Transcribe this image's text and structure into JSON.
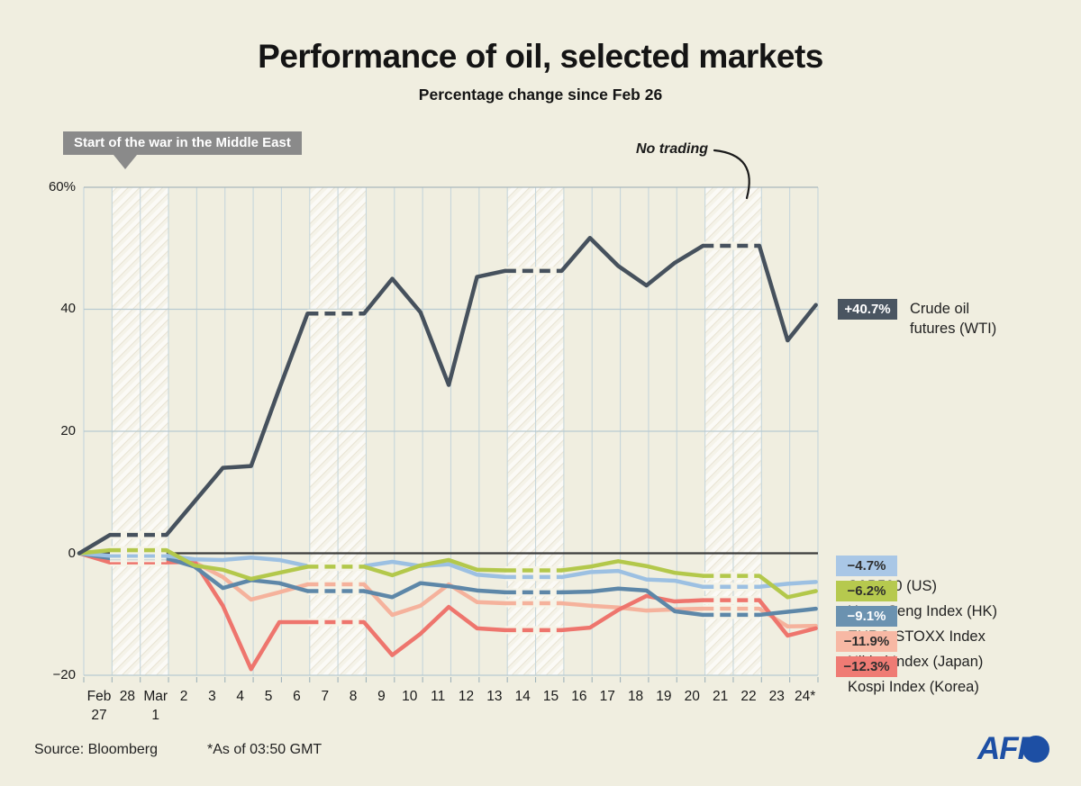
{
  "header": {
    "title": "Performance of oil, selected markets",
    "subtitle": "Percentage change since Feb 26"
  },
  "annotations": {
    "war_label": "Start of the war in the Middle East",
    "no_trading_label": "No trading"
  },
  "oil_callout": {
    "value": "+40.7%",
    "label_line1": "Crude oil",
    "label_line2": "futures (WTI)",
    "badge_bg": "#4a5561",
    "badge_text": "#ffffff"
  },
  "legend": {
    "items": [
      {
        "value": "−4.7%",
        "label": "S&P500 (US)",
        "badge_bg": "#a9c7e6",
        "badge_text": "#2e2e2e"
      },
      {
        "value": "−6.2%",
        "label": "Hang Seng Index (HK)",
        "badge_bg": "#b6c94e",
        "badge_text": "#2e2e2e"
      },
      {
        "value": "−9.1%",
        "label": "EURO STOXX Index",
        "badge_bg": "#6b92b0",
        "badge_text": "#ffffff"
      },
      {
        "value": "−11.9%",
        "label": "Nikkei Index (Japan)",
        "badge_bg": "#f7b8a4",
        "badge_text": "#2e2e2e"
      },
      {
        "value": "−12.3%",
        "label": "Kospi Index (Korea)",
        "badge_bg": "#ef7b74",
        "badge_text": "#2e2e2e"
      }
    ]
  },
  "axes": {
    "y_tick_labels": [
      "60%",
      "40",
      "20",
      "0",
      "−20"
    ]
  },
  "footer": {
    "source": "Source: Bloomberg",
    "as_of": "*As of 03:50 GMT",
    "logo_text": "AFP",
    "logo_color": "#1d4fa4"
  },
  "chart_data": {
    "type": "line",
    "title": "Performance of oil, selected markets",
    "subtitle": "Percentage change since Feb 26",
    "ylabel": "Percentage change since Feb 26 (%)",
    "ylim": [
      -20,
      60
    ],
    "y_ticks": [
      60,
      40,
      20,
      0,
      -20
    ],
    "grid": true,
    "legend_position": "right",
    "baseline": {
      "label": "Feb 26",
      "value": 0
    },
    "x_labels": [
      [
        "Feb",
        "27"
      ],
      [
        "28"
      ],
      [
        "Mar",
        "1"
      ],
      [
        "2"
      ],
      [
        "3"
      ],
      [
        "4"
      ],
      [
        "5"
      ],
      [
        "6"
      ],
      [
        "7"
      ],
      [
        "8"
      ],
      [
        "9"
      ],
      [
        "10"
      ],
      [
        "11"
      ],
      [
        "12"
      ],
      [
        "13"
      ],
      [
        "14"
      ],
      [
        "15"
      ],
      [
        "16"
      ],
      [
        "17"
      ],
      [
        "18"
      ],
      [
        "19"
      ],
      [
        "20"
      ],
      [
        "21"
      ],
      [
        "22"
      ],
      [
        "23"
      ],
      [
        "24*"
      ]
    ],
    "weekend_no_trading_spans": [
      [
        0,
        2
      ],
      [
        7,
        9
      ],
      [
        14,
        16
      ],
      [
        21,
        23
      ]
    ],
    "series": [
      {
        "name": "Nikkei Index (Japan)",
        "color": "#f5b29c",
        "final_label": "−11.9%",
        "values": [
          -1.2,
          -1.2,
          -1.2,
          -1.5,
          -3.9,
          -7.6,
          -6.4,
          -5.1,
          -5.1,
          -5.1,
          -10.1,
          -8.6,
          -5.1,
          -8,
          -8.2,
          -8.2,
          -8.2,
          -8.6,
          -8.9,
          -9.4,
          -9.2,
          -9.1,
          -9.1,
          -9.1,
          -12,
          -11.9
        ]
      },
      {
        "name": "Kospi Index (Korea)",
        "color": "#ee756d",
        "final_label": "−12.3%",
        "values": [
          -1.5,
          -1.5,
          -1.5,
          -1.4,
          -8.6,
          -19,
          -11.3,
          -11.3,
          -11.3,
          -11.3,
          -16.7,
          -13.2,
          -8.8,
          -12.3,
          -12.6,
          -12.6,
          -12.6,
          -12.2,
          -9.3,
          -7,
          -7.9,
          -7.7,
          -7.7,
          -7.7,
          -13.5,
          -12.3
        ]
      },
      {
        "name": "EURO STOXX Index",
        "color": "#5d87a8",
        "final_label": "−9.1%",
        "values": [
          -0.8,
          -0.8,
          -0.8,
          -2.2,
          -5.7,
          -4.4,
          -4.9,
          -6.2,
          -6.2,
          -6.2,
          -7.2,
          -4.9,
          -5.4,
          -6.1,
          -6.4,
          -6.4,
          -6.4,
          -6.3,
          -5.8,
          -6.1,
          -9.5,
          -10.1,
          -10.1,
          -10.1,
          -9.6,
          -9.1
        ]
      },
      {
        "name": "S&P500 (US)",
        "color": "#9cc0e2",
        "final_label": "−4.7%",
        "values": [
          -0.4,
          -0.4,
          -0.4,
          -1,
          -1.1,
          -0.7,
          -1.1,
          -2.1,
          -2.1,
          -2.1,
          -1.4,
          -2.1,
          -1.8,
          -3.5,
          -3.9,
          -3.9,
          -3.9,
          -3.1,
          -2.9,
          -4.3,
          -4.5,
          -5.5,
          -5.5,
          -5.5,
          -5,
          -4.7
        ]
      },
      {
        "name": "Hang Seng Index (HK)",
        "color": "#b3c84b",
        "final_label": "−6.2%",
        "values": [
          0.5,
          0.5,
          0.5,
          -2,
          -2.7,
          -4.2,
          -3.2,
          -2.2,
          -2.2,
          -2.2,
          -3.6,
          -2,
          -1.1,
          -2.7,
          -2.8,
          -2.8,
          -2.8,
          -2.2,
          -1.3,
          -2.1,
          -3.2,
          -3.7,
          -3.7,
          -3.7,
          -7.2,
          -6.2
        ]
      },
      {
        "name": "Crude oil futures (WTI)",
        "color": "#46515d",
        "final_label": "+40.7%",
        "values": [
          3,
          3,
          3,
          8.5,
          14,
          14.3,
          27,
          39.3,
          39.3,
          39.3,
          45,
          39.5,
          27.6,
          45.3,
          46.3,
          46.3,
          46.3,
          51.7,
          47.1,
          43.9,
          47.6,
          50.4,
          50.4,
          50.4,
          34.9,
          40.7
        ]
      }
    ]
  }
}
